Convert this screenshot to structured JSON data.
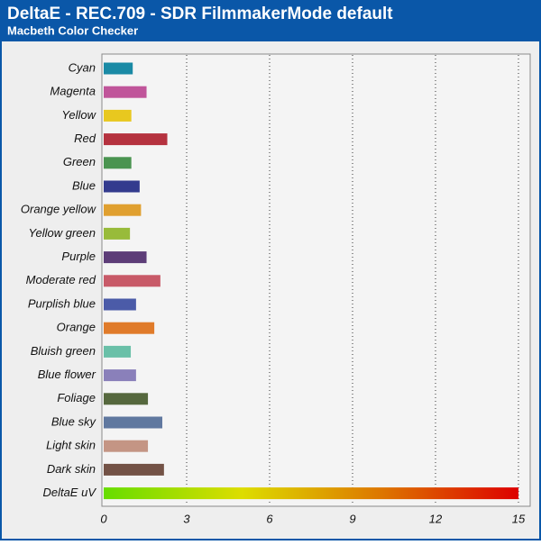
{
  "chart_data": {
    "type": "bar",
    "orientation": "horizontal",
    "title": "DeltaE - REC.709 - SDR FilmmakerMode default",
    "subtitle": "Macbeth Color Checker",
    "categories": [
      "Cyan",
      "Magenta",
      "Yellow",
      "Red",
      "Green",
      "Blue",
      "Orange yellow",
      "Yellow green",
      "Purple",
      "Moderate red",
      "Purplish blue",
      "Orange",
      "Bluish green",
      "Blue flower",
      "Foliage",
      "Blue sky",
      "Light skin",
      "Dark skin"
    ],
    "values": [
      1.05,
      1.55,
      1.0,
      2.3,
      1.0,
      1.3,
      1.35,
      0.95,
      1.55,
      2.05,
      1.17,
      1.83,
      0.98,
      1.17,
      1.6,
      2.12,
      1.6,
      2.18
    ],
    "colors": [
      "#1a8aa5",
      "#c0559a",
      "#e8c81f",
      "#b5323f",
      "#4a9450",
      "#333b8e",
      "#e0a030",
      "#98bb3a",
      "#5d3d78",
      "#c85a68",
      "#4b5ba8",
      "#e07b2a",
      "#6ac0a8",
      "#8a80ba",
      "#56683e",
      "#60789f",
      "#c49584",
      "#735246"
    ],
    "scale_bar": {
      "label": "DeltaE uV",
      "colors": [
        "#66dd00",
        "#dddd00",
        "#dd7700",
        "#dd0000"
      ]
    },
    "xlim": [
      0,
      15
    ],
    "xticks": [
      0,
      3,
      6,
      9,
      12,
      15
    ],
    "grid": true
  }
}
